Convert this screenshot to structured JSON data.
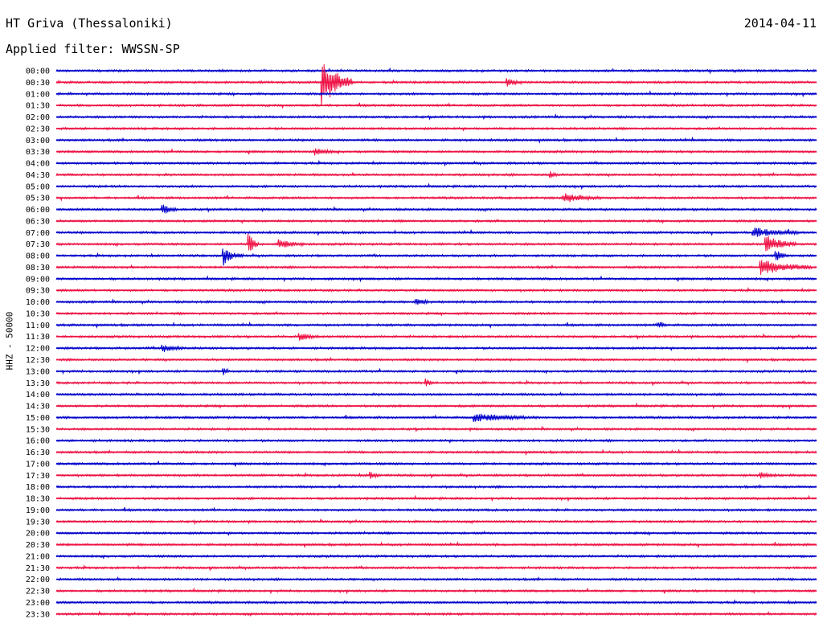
{
  "header": {
    "station": "HT Griva (Thessaloniki)",
    "date": "2014-04-11",
    "filter": "Applied filter: WWSSN-SP"
  },
  "channel_label": "HHZ - 50000",
  "colors": {
    "trace_a": "#0000cc",
    "trace_b": "#ee1144"
  },
  "chart_data": {
    "type": "line",
    "ylabel": "HHZ - 50000",
    "rows": [
      "00:00",
      "00:30",
      "01:00",
      "01:30",
      "02:00",
      "02:30",
      "03:00",
      "03:30",
      "04:00",
      "04:30",
      "05:00",
      "05:30",
      "06:00",
      "06:30",
      "07:00",
      "07:30",
      "08:00",
      "08:30",
      "09:00",
      "09:30",
      "10:00",
      "10:30",
      "11:00",
      "11:30",
      "12:00",
      "12:30",
      "13:00",
      "13:30",
      "14:00",
      "14:30",
      "15:00",
      "15:30",
      "16:00",
      "16:30",
      "17:00",
      "17:30",
      "18:00",
      "18:30",
      "19:00",
      "19:30",
      "20:00",
      "20:30",
      "21:00",
      "21:30",
      "22:00",
      "22:30",
      "23:00",
      "23:30"
    ],
    "row_minutes": 30,
    "series_colors_alternate": [
      "#0000cc",
      "#ee1144"
    ],
    "events": [
      {
        "row": "00:30",
        "minute": 10.5,
        "amplitude": 8.0,
        "duration": 1.2
      },
      {
        "row": "00:30",
        "minute": 17.8,
        "amplitude": 1.2,
        "duration": 0.6
      },
      {
        "row": "03:30",
        "minute": 10.2,
        "amplitude": 1.0,
        "duration": 0.8
      },
      {
        "row": "04:30",
        "minute": 19.5,
        "amplitude": 1.0,
        "duration": 0.3
      },
      {
        "row": "05:30",
        "minute": 20.0,
        "amplitude": 1.4,
        "duration": 1.5
      },
      {
        "row": "06:00",
        "minute": 4.2,
        "amplitude": 1.6,
        "duration": 0.6
      },
      {
        "row": "07:00",
        "minute": 27.5,
        "amplitude": 1.6,
        "duration": 1.8
      },
      {
        "row": "07:30",
        "minute": 7.6,
        "amplitude": 3.5,
        "duration": 0.4
      },
      {
        "row": "07:30",
        "minute": 8.8,
        "amplitude": 1.6,
        "duration": 1.0
      },
      {
        "row": "07:30",
        "minute": 28.0,
        "amplitude": 3.0,
        "duration": 1.2
      },
      {
        "row": "08:00",
        "minute": 6.6,
        "amplitude": 2.5,
        "duration": 0.8
      },
      {
        "row": "08:00",
        "minute": 28.4,
        "amplitude": 1.8,
        "duration": 0.5
      },
      {
        "row": "08:30",
        "minute": 27.8,
        "amplitude": 2.4,
        "duration": 2.0
      },
      {
        "row": "10:00",
        "minute": 14.2,
        "amplitude": 1.2,
        "duration": 0.5
      },
      {
        "row": "11:00",
        "minute": 23.8,
        "amplitude": 1.2,
        "duration": 0.3
      },
      {
        "row": "11:30",
        "minute": 9.6,
        "amplitude": 1.0,
        "duration": 0.8
      },
      {
        "row": "12:00",
        "minute": 4.2,
        "amplitude": 1.2,
        "duration": 0.8
      },
      {
        "row": "13:00",
        "minute": 6.6,
        "amplitude": 1.0,
        "duration": 0.3
      },
      {
        "row": "13:30",
        "minute": 14.6,
        "amplitude": 1.2,
        "duration": 0.3
      },
      {
        "row": "15:00",
        "minute": 16.5,
        "amplitude": 1.2,
        "duration": 2.5
      },
      {
        "row": "17:30",
        "minute": 12.4,
        "amplitude": 1.2,
        "duration": 0.4
      },
      {
        "row": "17:30",
        "minute": 27.8,
        "amplitude": 0.8,
        "duration": 0.6
      }
    ]
  }
}
